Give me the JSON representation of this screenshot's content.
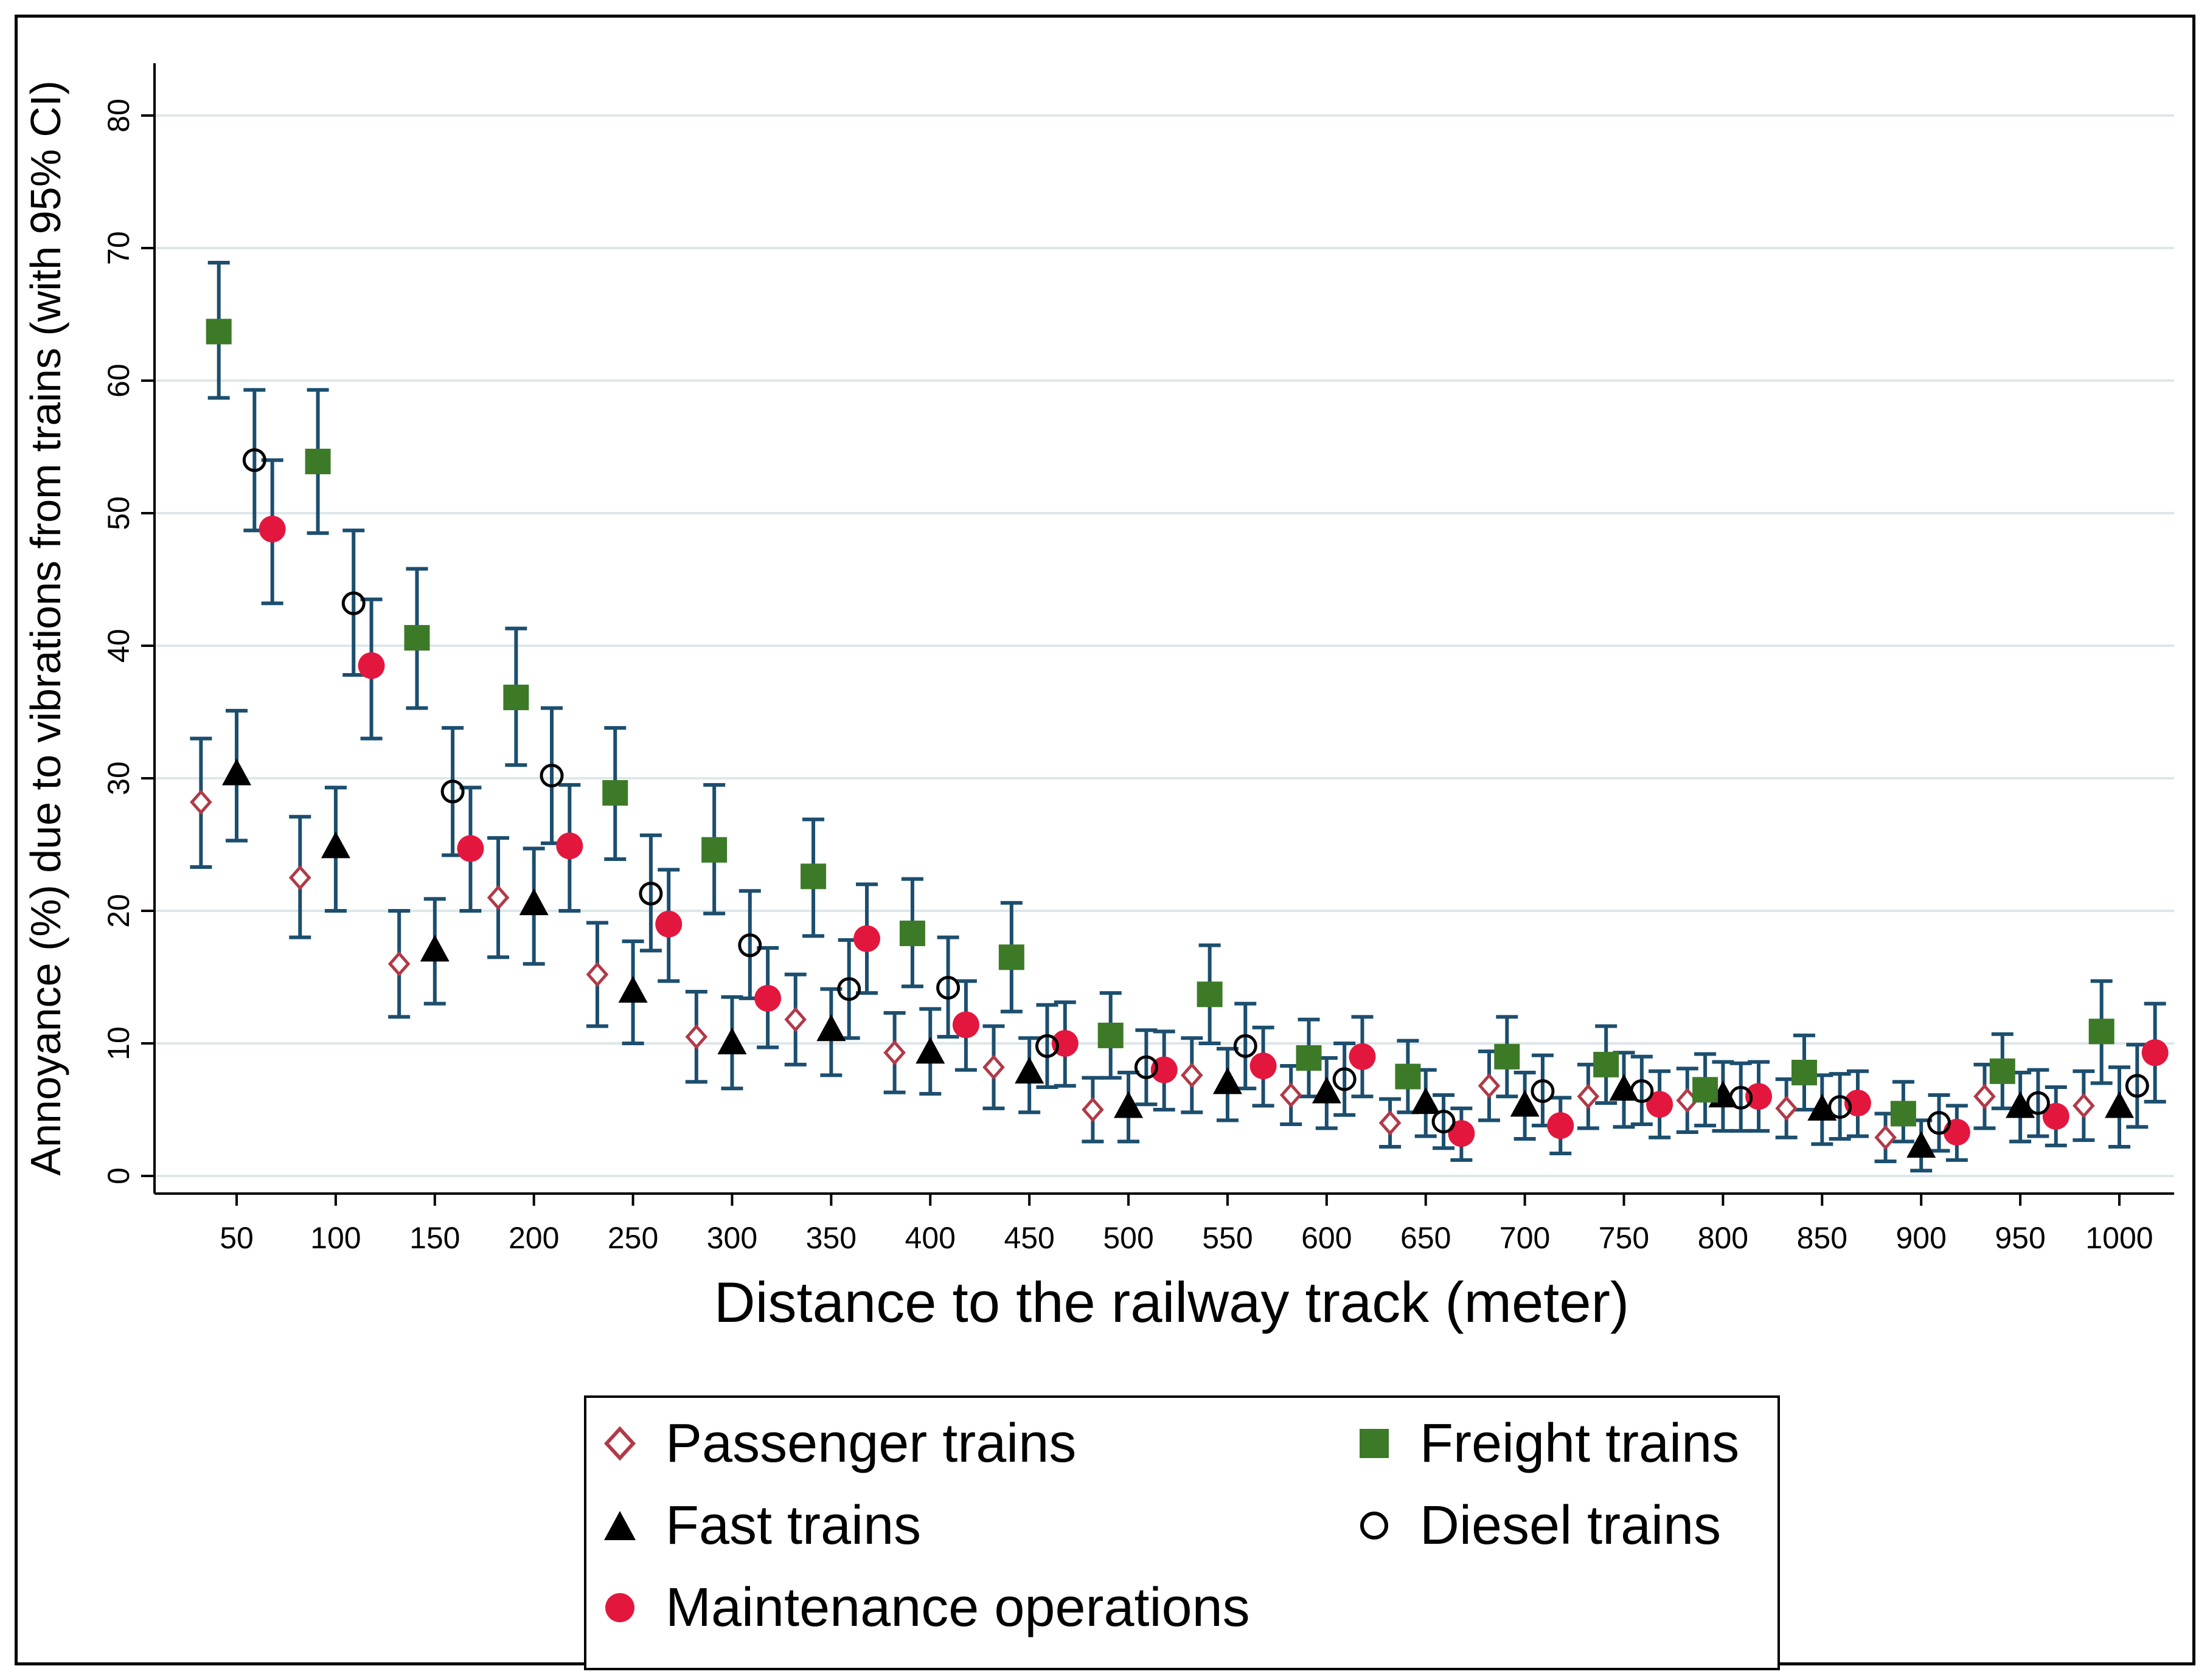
{
  "chart_data": {
    "type": "scatter",
    "title": "",
    "xlabel": "Distance to the railway track (meter)",
    "ylabel": "Annoyance (%) due to vibrations from trains (with 95% CI)",
    "x": [
      50,
      100,
      150,
      200,
      250,
      300,
      350,
      400,
      450,
      500,
      550,
      600,
      650,
      700,
      750,
      800,
      850,
      900,
      950,
      1000
    ],
    "xticks": [
      "50",
      "100",
      "150",
      "200",
      "250",
      "300",
      "350",
      "400",
      "450",
      "500",
      "550",
      "600",
      "650",
      "700",
      "750",
      "800",
      "850",
      "900",
      "950",
      "1000"
    ],
    "yticks": [
      "0",
      "10",
      "20",
      "30",
      "40",
      "50",
      "60",
      "70",
      "80"
    ],
    "ylim": [
      0,
      80
    ],
    "grid": true,
    "error_bars": "95% CI",
    "series": [
      {
        "name": "Passenger trains",
        "marker": "diamond-open",
        "color": "#b03a48",
        "offset": -18,
        "values": [
          28.2,
          22.5,
          16.0,
          21.0,
          15.2,
          10.5,
          11.8,
          9.3,
          8.2,
          5.0,
          7.6,
          6.1,
          4.0,
          6.8,
          6.0,
          5.7,
          5.1,
          2.9,
          6.0,
          5.3
        ],
        "lower": [
          23.3,
          18.0,
          12.0,
          16.5,
          11.3,
          7.1,
          8.4,
          6.3,
          5.1,
          2.6,
          4.8,
          3.9,
          2.2,
          4.2,
          3.6,
          3.3,
          2.9,
          1.1,
          3.6,
          2.7
        ],
        "upper": [
          33.0,
          27.1,
          20.0,
          25.5,
          19.1,
          13.9,
          15.2,
          12.3,
          11.3,
          7.4,
          10.4,
          8.3,
          5.8,
          9.4,
          8.4,
          8.1,
          7.3,
          4.7,
          8.4,
          7.9
        ]
      },
      {
        "name": "Fast trains",
        "marker": "triangle",
        "color": "#000000",
        "offset": 0,
        "values": [
          30.3,
          24.8,
          17.0,
          20.5,
          13.9,
          10.0,
          11.0,
          9.3,
          7.8,
          5.2,
          7.0,
          6.3,
          5.5,
          5.3,
          6.5,
          6.0,
          5.0,
          2.2,
          5.2,
          5.2
        ],
        "lower": [
          25.3,
          20.0,
          13.0,
          16.0,
          10.0,
          6.6,
          7.6,
          6.2,
          4.8,
          2.6,
          4.2,
          3.6,
          3.0,
          2.8,
          3.7,
          3.4,
          2.4,
          0.4,
          2.6,
          2.2
        ],
        "upper": [
          35.1,
          29.3,
          20.9,
          24.7,
          17.7,
          13.5,
          14.1,
          12.6,
          10.4,
          7.8,
          9.6,
          8.9,
          8.0,
          7.8,
          9.3,
          8.6,
          7.6,
          4.2,
          7.8,
          8.2
        ]
      },
      {
        "name": "Maintenance operations",
        "marker": "circle",
        "color": "#e3173e",
        "offset": 18,
        "values": [
          48.8,
          38.5,
          24.7,
          24.9,
          19.0,
          13.4,
          17.9,
          11.4,
          10.0,
          8.0,
          8.3,
          9.0,
          3.2,
          3.8,
          5.4,
          6.0,
          5.5,
          3.3,
          4.5,
          9.3
        ],
        "lower": [
          43.2,
          33.0,
          20.0,
          20.0,
          14.7,
          9.7,
          13.8,
          8.0,
          6.8,
          5.0,
          5.3,
          6.0,
          1.2,
          1.7,
          2.9,
          3.4,
          3.0,
          1.2,
          2.3,
          5.6
        ],
        "upper": [
          54.0,
          43.5,
          29.3,
          29.5,
          23.1,
          17.2,
          22.0,
          14.7,
          13.1,
          10.9,
          11.2,
          12.0,
          5.1,
          5.9,
          7.9,
          8.6,
          7.9,
          5.3,
          6.7,
          13.0
        ]
      },
      {
        "name": "Freight trains",
        "marker": "square",
        "color": "#3d7a28",
        "offset": -9,
        "values": [
          63.7,
          53.9,
          40.6,
          36.1,
          28.9,
          24.6,
          22.6,
          18.3,
          16.5,
          10.6,
          13.7,
          8.9,
          7.5,
          9.0,
          8.4,
          6.5,
          7.8,
          4.7,
          7.9,
          10.9
        ],
        "lower": [
          58.7,
          48.5,
          35.3,
          31.0,
          23.9,
          19.8,
          18.1,
          14.3,
          12.4,
          7.4,
          10.0,
          6.0,
          4.8,
          6.0,
          5.5,
          3.8,
          5.0,
          2.6,
          5.1,
          7.0
        ],
        "upper": [
          68.9,
          59.3,
          45.8,
          41.3,
          33.8,
          29.5,
          26.9,
          22.4,
          20.6,
          13.8,
          17.4,
          11.8,
          10.2,
          12.0,
          11.3,
          9.2,
          10.6,
          7.1,
          10.7,
          14.7
        ]
      },
      {
        "name": "Diesel trains",
        "marker": "circle-open",
        "color": "#000000",
        "offset": 9,
        "values": [
          54.0,
          43.2,
          29.0,
          30.2,
          21.3,
          17.4,
          14.1,
          14.2,
          9.8,
          8.2,
          9.8,
          7.3,
          4.1,
          6.4,
          6.4,
          5.9,
          5.2,
          4.0,
          5.5,
          6.8
        ],
        "lower": [
          48.7,
          37.8,
          24.2,
          25.1,
          17.0,
          13.4,
          10.4,
          10.5,
          6.7,
          5.4,
          6.6,
          4.6,
          2.1,
          3.8,
          3.9,
          3.4,
          2.8,
          1.9,
          3.0,
          3.7
        ],
        "upper": [
          59.3,
          48.7,
          33.8,
          35.3,
          25.7,
          21.5,
          17.8,
          18.0,
          12.9,
          11.0,
          13.0,
          10.0,
          6.1,
          9.1,
          9.0,
          8.5,
          7.7,
          6.1,
          8.0,
          9.9
        ]
      }
    ],
    "legend": {
      "position": "bottom",
      "entries": [
        "Passenger trains",
        "Freight trains",
        "Fast trains",
        "Diesel trains",
        "Maintenance operations"
      ]
    }
  },
  "colors": {
    "grid": "#dde7ea",
    "error_bar": "#1c4e6e",
    "axis": "#000000"
  }
}
